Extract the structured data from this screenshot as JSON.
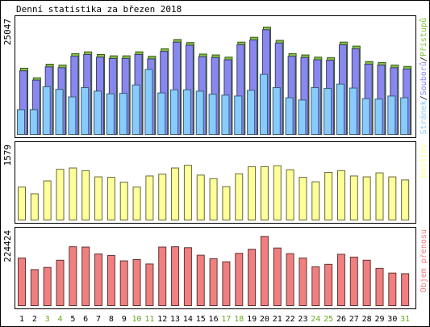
{
  "chart_data": {
    "type": "bar",
    "title": "Denní statistika za březen 2018",
    "categories": [
      "1",
      "2",
      "3",
      "4",
      "5",
      "6",
      "7",
      "8",
      "9",
      "10",
      "11",
      "12",
      "13",
      "14",
      "15",
      "16",
      "17",
      "18",
      "19",
      "20",
      "21",
      "22",
      "23",
      "24",
      "25",
      "26",
      "27",
      "28",
      "29",
      "30",
      "31"
    ],
    "weekend_days": [
      "3",
      "4",
      "10",
      "11",
      "17",
      "18",
      "24",
      "25",
      "31"
    ],
    "panels": [
      {
        "ylabel": "25047",
        "ymax": 25047,
        "legend": [
          "Stránek",
          "Souborů",
          "Přístupů"
        ],
        "series": [
          {
            "name": "Přístupů",
            "color": "#80c040",
            "values": [
              15000,
              12800,
              15900,
              15700,
              18300,
              18700,
              18100,
              17800,
              17800,
              18700,
              17700,
              19400,
              21500,
              20800,
              18200,
              18000,
              17500,
              20900,
              22000,
              24300,
              21300,
              18300,
              18000,
              17500,
              17400,
              20900,
              20000,
              16500,
              16300,
              15700,
              15400
            ]
          },
          {
            "name": "Stránek",
            "color": "#8888ee",
            "values": [
              14400,
              12300,
              15300,
              15100,
              17700,
              18100,
              17500,
              17200,
              17200,
              18100,
              17100,
              18800,
              20900,
              20200,
              17600,
              17400,
              16900,
              20300,
              21400,
              23700,
              20700,
              17700,
              17400,
              16900,
              16800,
              20300,
              19400,
              15900,
              15700,
              15100,
              14800
            ]
          },
          {
            "name": "Souborů",
            "color": "#88ccff",
            "values": [
              5600,
              5600,
              10800,
              10200,
              8500,
              10600,
              9800,
              9200,
              9300,
              11200,
              14700,
              9400,
              10100,
              10100,
              9800,
              9100,
              8900,
              8700,
              10000,
              13600,
              10600,
              8300,
              7800,
              10600,
              10400,
              11400,
              10500,
              8100,
              8000,
              8700,
              8300
            ]
          }
        ]
      },
      {
        "ylabel": "1579",
        "ymax": 1579,
        "legend": [
          "Návštěv"
        ],
        "series": [
          {
            "name": "Návštěv",
            "color": "#ffff99",
            "values": [
              740,
              590,
              880,
              1140,
              1170,
              1110,
              970,
              960,
              850,
              740,
              990,
              1030,
              1170,
              1230,
              1010,
              930,
              750,
              1040,
              1200,
              1200,
              1220,
              1130,
              960,
              860,
              1070,
              1110,
              990,
              970,
              1060,
              970,
              900
            ]
          }
        ]
      },
      {
        "ylabel": "224424",
        "ymax": 224424,
        "legend": [
          "Objem přenosu"
        ],
        "series": [
          {
            "name": "Objem přenosu",
            "color": "#f08080",
            "values": [
              152000,
              115000,
              122000,
              145000,
              188000,
              187000,
              165000,
              160000,
              143000,
              147000,
              133000,
              187000,
              188000,
              185000,
              161000,
              150000,
              140000,
              167000,
              180000,
              221000,
              184000,
              166000,
              152000,
              124000,
              132000,
              164000,
              155000,
              145000,
              119000,
              104000,
              102000
            ]
          }
        ]
      }
    ]
  }
}
